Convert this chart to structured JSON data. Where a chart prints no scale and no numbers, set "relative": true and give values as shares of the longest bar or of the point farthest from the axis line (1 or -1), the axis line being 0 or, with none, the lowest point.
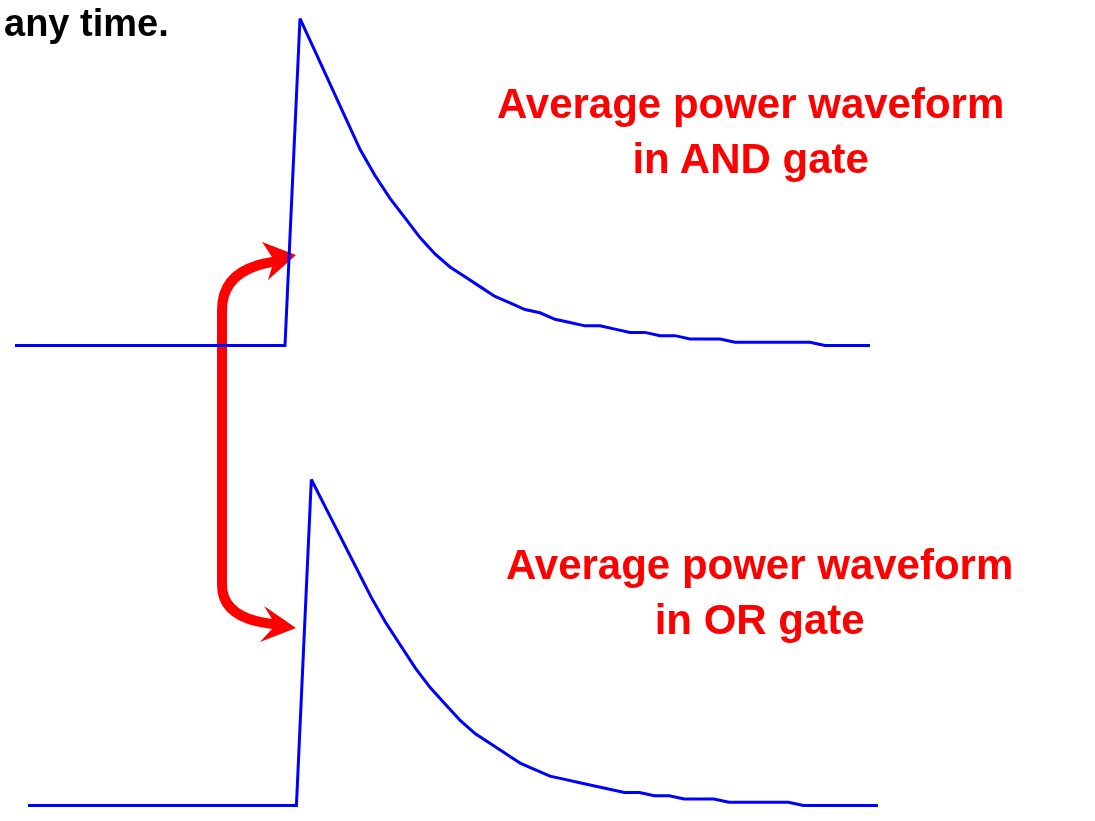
{
  "chart_data": [
    {
      "type": "line",
      "relative": true,
      "title": "any time.",
      "categories": [
        null,
        null,
        null,
        null,
        null,
        null,
        null,
        null,
        null,
        null,
        null,
        null,
        null,
        null,
        null,
        null,
        null,
        null,
        null,
        null,
        null,
        null,
        null,
        null,
        null,
        null,
        null,
        null,
        null,
        null,
        null,
        null,
        null,
        null,
        null,
        null,
        null,
        null,
        null,
        null,
        null,
        null,
        null,
        null,
        null,
        null,
        null,
        null,
        null,
        null,
        null,
        null,
        null,
        null,
        null,
        null,
        null,
        null
      ],
      "series": [
        {
          "color": "#0000ff",
          "values": [
            0,
            0,
            0,
            0,
            0,
            0,
            0,
            0,
            0,
            0,
            0,
            0,
            0,
            0,
            0,
            0,
            0,
            0,
            0,
            1.0,
            0.9,
            0.8,
            0.7,
            0.6,
            0.52,
            0.45,
            0.39,
            0.33,
            0.28,
            0.24,
            0.21,
            0.18,
            0.15,
            0.13,
            0.11,
            0.1,
            0.08,
            0.07,
            0.06,
            0.06,
            0.05,
            0.04,
            0.04,
            0.03,
            0.03,
            0.02,
            0.02,
            0.02,
            0.01,
            0.01,
            0.01,
            0.01,
            0.01,
            0.01,
            0,
            0,
            0,
            0
          ]
        }
      ],
      "annotations": [
        "Average power waveform\nin AND gate"
      ]
    },
    {
      "type": "line",
      "relative": true,
      "categories": [
        null,
        null,
        null,
        null,
        null,
        null,
        null,
        null,
        null,
        null,
        null,
        null,
        null,
        null,
        null,
        null,
        null,
        null,
        null,
        null,
        null,
        null,
        null,
        null,
        null,
        null,
        null,
        null,
        null,
        null,
        null,
        null,
        null,
        null,
        null,
        null,
        null,
        null,
        null,
        null,
        null,
        null,
        null,
        null,
        null,
        null,
        null,
        null,
        null,
        null,
        null,
        null,
        null,
        null,
        null,
        null,
        null,
        null
      ],
      "series": [
        {
          "color": "#0000ff",
          "values": [
            0,
            0,
            0,
            0,
            0,
            0,
            0,
            0,
            0,
            0,
            0,
            0,
            0,
            0,
            0,
            0,
            0,
            0,
            0,
            1.0,
            0.91,
            0.82,
            0.73,
            0.64,
            0.56,
            0.49,
            0.42,
            0.36,
            0.31,
            0.26,
            0.22,
            0.19,
            0.16,
            0.13,
            0.11,
            0.09,
            0.08,
            0.07,
            0.06,
            0.05,
            0.04,
            0.04,
            0.03,
            0.03,
            0.02,
            0.02,
            0.02,
            0.01,
            0.01,
            0.01,
            0.01,
            0.01,
            0,
            0,
            0,
            0,
            0,
            0
          ]
        }
      ],
      "annotations": [
        "Average power waveform\nin OR gate"
      ]
    }
  ]
}
